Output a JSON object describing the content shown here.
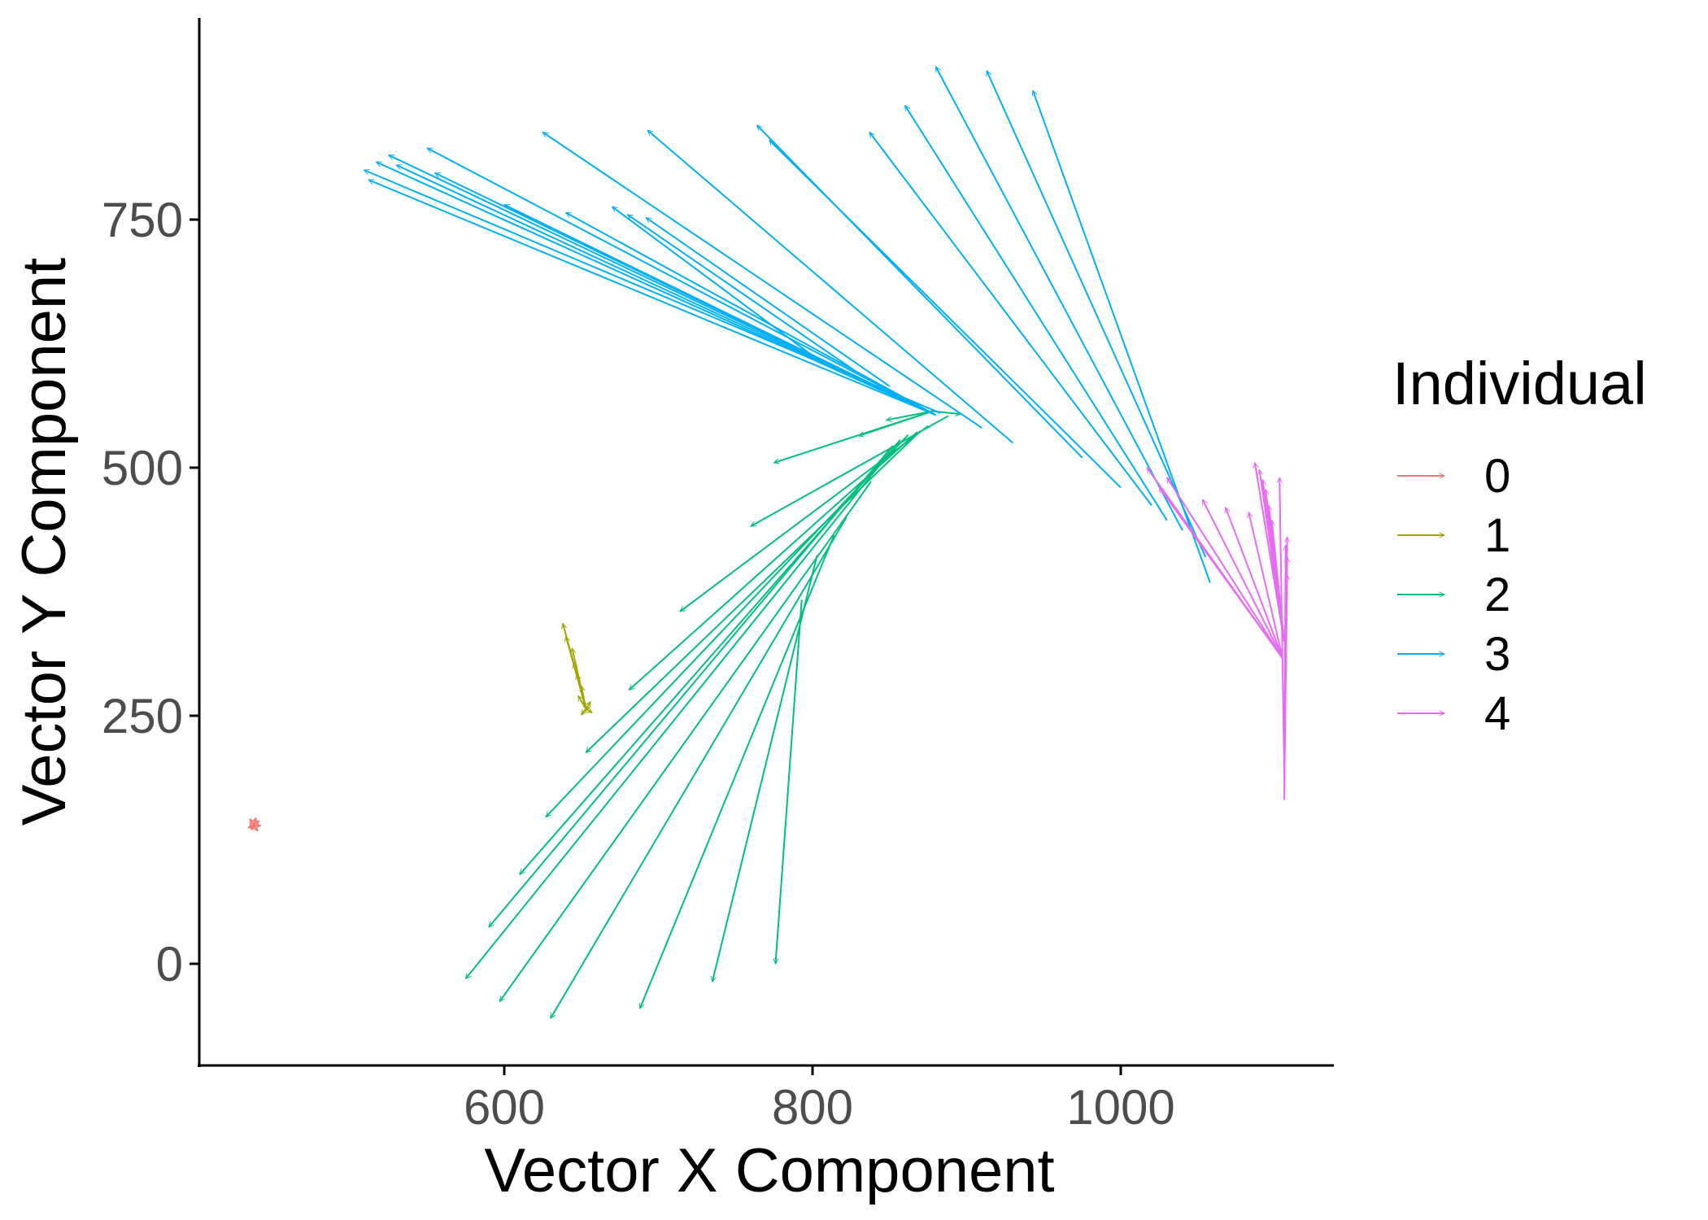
{
  "chart_data": {
    "type": "vector",
    "xlabel": "Vector X Component",
    "ylabel": "Vector Y Component",
    "xlim": [
      420,
      1140
    ],
    "ylim": [
      -100,
      950
    ],
    "xticks": [
      600,
      800,
      1000
    ],
    "yticks": [
      0,
      250,
      500,
      750
    ],
    "grid": false,
    "legend": {
      "title": "Individual",
      "placement": "right"
    },
    "series": [
      {
        "name": "0",
        "color": "#F8766D",
        "arrows": [
          [
            437,
            140,
            435,
            146
          ],
          [
            437,
            140,
            439,
            147
          ],
          [
            437,
            140,
            441,
            144
          ],
          [
            437,
            140,
            442,
            139
          ],
          [
            437,
            140,
            440,
            134
          ],
          [
            437,
            140,
            436,
            135
          ],
          [
            437,
            140,
            434,
            137
          ]
        ]
      },
      {
        "name": "1",
        "color": "#A3A500",
        "arrows": [
          [
            653,
            257,
            638,
            343
          ],
          [
            653,
            257,
            640,
            330
          ],
          [
            653,
            257,
            644,
            318
          ],
          [
            653,
            257,
            645,
            303
          ],
          [
            653,
            257,
            647,
            292
          ],
          [
            653,
            257,
            650,
            280
          ],
          [
            653,
            257,
            648,
            270
          ],
          [
            653,
            257,
            656,
            264
          ],
          [
            653,
            257,
            657,
            253
          ],
          [
            653,
            257,
            650,
            251
          ],
          [
            653,
            257,
            655,
            258
          ]
        ]
      },
      {
        "name": "2",
        "color": "#00BF7D",
        "arrows": [
          [
            878,
            557,
            775,
            505
          ],
          [
            878,
            557,
            830,
            532
          ],
          [
            878,
            557,
            848,
            548
          ],
          [
            878,
            557,
            896,
            554
          ],
          [
            888,
            552,
            760,
            441
          ],
          [
            875,
            542,
            714,
            355
          ],
          [
            868,
            536,
            681,
            276
          ],
          [
            870,
            537,
            653,
            213
          ],
          [
            862,
            533,
            627,
            148
          ],
          [
            857,
            528,
            610,
            90
          ],
          [
            852,
            522,
            590,
            37
          ],
          [
            850,
            515,
            575,
            -15
          ],
          [
            838,
            486,
            597,
            -38
          ],
          [
            822,
            450,
            630,
            -55
          ],
          [
            814,
            432,
            688,
            -45
          ],
          [
            803,
            412,
            735,
            -18
          ],
          [
            793,
            367,
            776,
            0
          ]
        ]
      },
      {
        "name": "3",
        "color": "#00B0F6",
        "arrows": [
          [
            883,
            555,
            509,
            800
          ],
          [
            880,
            553,
            512,
            790
          ],
          [
            880,
            553,
            517,
            808
          ],
          [
            880,
            553,
            530,
            805
          ],
          [
            880,
            553,
            525,
            815
          ],
          [
            880,
            553,
            550,
            822
          ],
          [
            880,
            553,
            555,
            797
          ],
          [
            880,
            553,
            600,
            765
          ],
          [
            880,
            553,
            640,
            757
          ],
          [
            800,
            613,
            670,
            763
          ],
          [
            830,
            595,
            680,
            755
          ],
          [
            850,
            582,
            692,
            752
          ],
          [
            910,
            540,
            625,
            838
          ],
          [
            930,
            525,
            693,
            840
          ],
          [
            975,
            510,
            764,
            845
          ],
          [
            1000,
            480,
            772,
            830
          ],
          [
            1020,
            462,
            837,
            838
          ],
          [
            1030,
            447,
            860,
            865
          ],
          [
            1040,
            437,
            880,
            904
          ],
          [
            1055,
            410,
            913,
            900
          ],
          [
            1058,
            384,
            943,
            880
          ]
        ]
      },
      {
        "name": "4",
        "color": "#E76BF3",
        "arrows": [
          [
            1105,
            308,
            1017,
            500
          ],
          [
            1105,
            308,
            1030,
            490
          ],
          [
            1105,
            308,
            1025,
            480
          ],
          [
            1105,
            308,
            1053,
            468
          ],
          [
            1105,
            308,
            1068,
            460
          ],
          [
            1105,
            308,
            1083,
            455
          ],
          [
            1106,
            325,
            1087,
            505
          ],
          [
            1106,
            325,
            1090,
            498
          ],
          [
            1106,
            325,
            1092,
            488
          ],
          [
            1106,
            325,
            1094,
            478
          ],
          [
            1106,
            325,
            1096,
            462
          ],
          [
            1106,
            325,
            1098,
            447
          ],
          [
            1106,
            200,
            1103,
            490
          ],
          [
            1106,
            200,
            1108,
            430
          ],
          [
            1106,
            190,
            1107,
            422
          ],
          [
            1106,
            180,
            1108,
            410
          ],
          [
            1106,
            165,
            1108,
            392
          ]
        ]
      }
    ]
  }
}
